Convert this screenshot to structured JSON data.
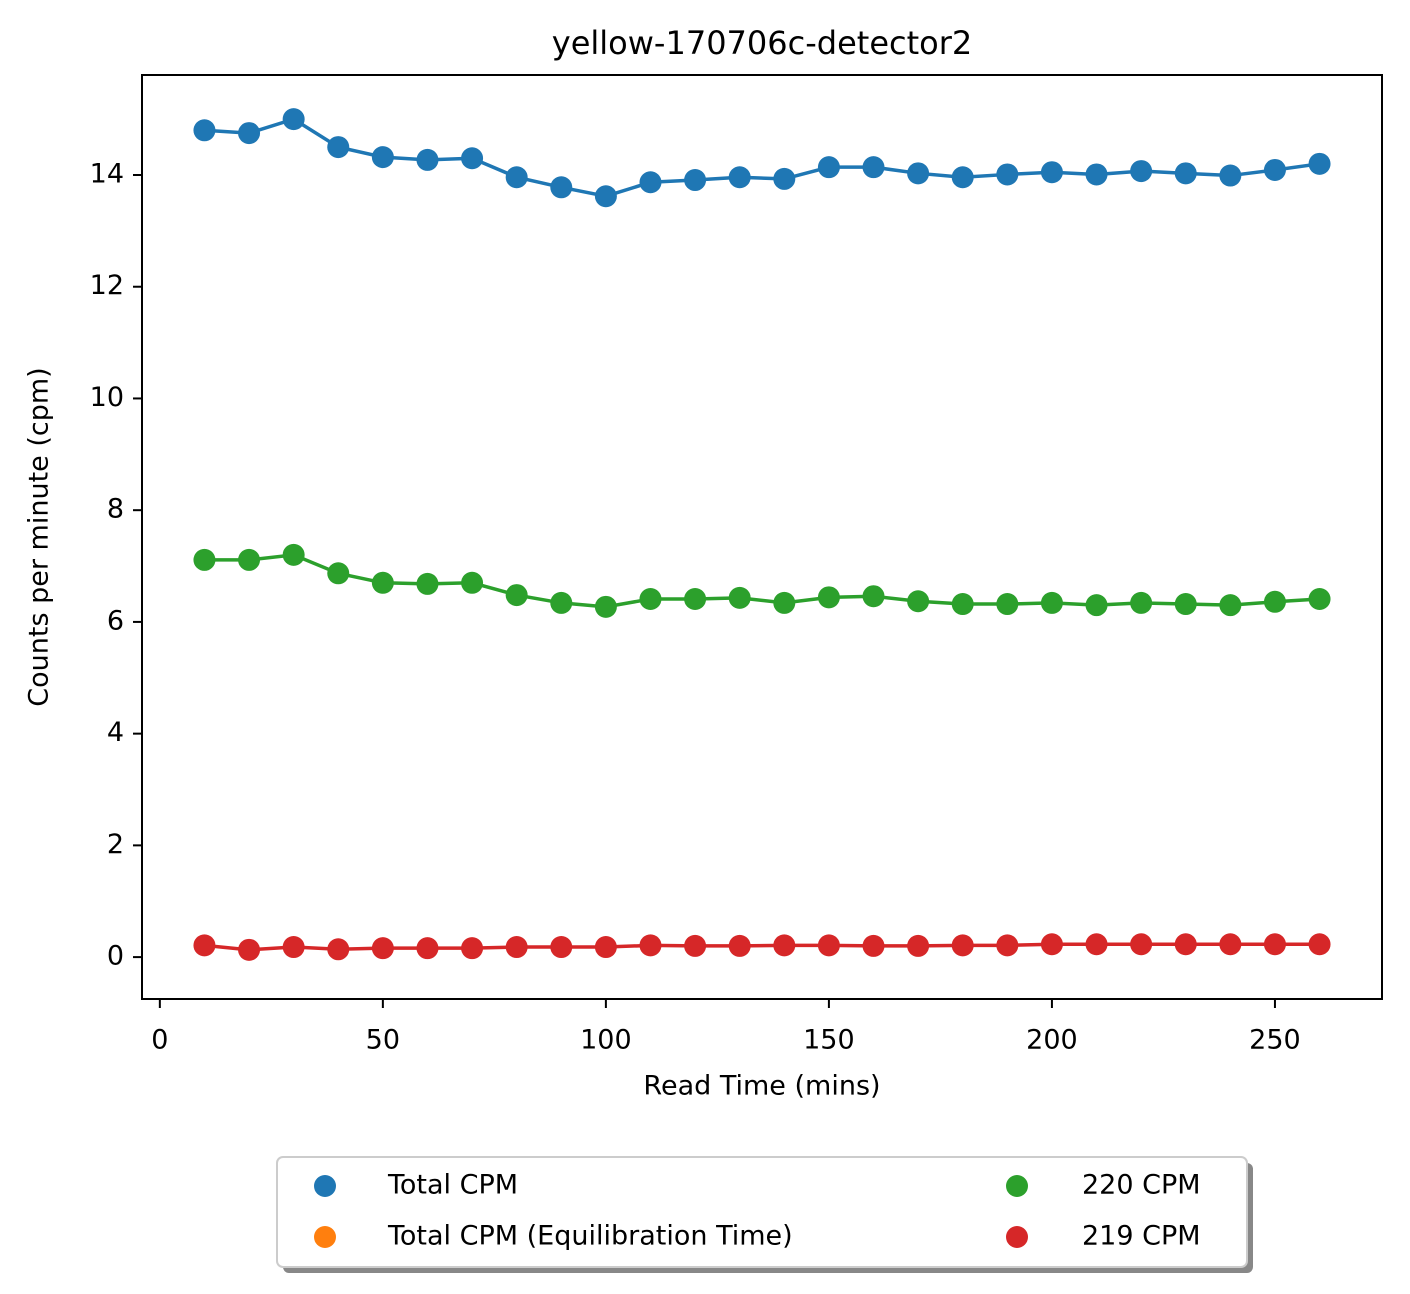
{
  "chart_data": {
    "type": "line",
    "title": "yellow-170706c-detector2",
    "xlabel": "Read Time (mins)",
    "ylabel": "Counts per minute (cpm)",
    "x": [
      10,
      20,
      30,
      40,
      50,
      60,
      70,
      80,
      90,
      100,
      110,
      120,
      130,
      140,
      150,
      160,
      170,
      180,
      190,
      200,
      210,
      220,
      230,
      240,
      250,
      260
    ],
    "series": [
      {
        "name": "Total CPM",
        "color": "#1f77b4",
        "values": [
          14.8,
          14.75,
          15.0,
          14.5,
          14.32,
          14.27,
          14.3,
          13.96,
          13.78,
          13.62,
          13.87,
          13.91,
          13.96,
          13.93,
          14.14,
          14.14,
          14.03,
          13.96,
          14.01,
          14.05,
          14.01,
          14.07,
          14.03,
          13.99,
          14.09,
          14.2
        ]
      },
      {
        "name": "Total CPM (Equilibration Time)",
        "color": "#ff7f0e",
        "values": [
          null,
          null,
          null,
          null,
          null,
          null,
          null,
          null,
          null,
          null,
          null,
          null,
          null,
          null,
          null,
          null,
          null,
          null,
          null,
          null,
          null,
          null,
          null,
          null,
          null,
          null
        ]
      },
      {
        "name": "220 CPM",
        "color": "#2ca02c",
        "values": [
          7.11,
          7.11,
          7.2,
          6.87,
          6.7,
          6.68,
          6.7,
          6.48,
          6.34,
          6.27,
          6.41,
          6.41,
          6.43,
          6.34,
          6.44,
          6.46,
          6.37,
          6.32,
          6.32,
          6.34,
          6.3,
          6.34,
          6.32,
          6.3,
          6.36,
          6.41
        ]
      },
      {
        "name": "219 CPM",
        "color": "#d62728",
        "values": [
          0.21,
          0.13,
          0.18,
          0.14,
          0.16,
          0.16,
          0.16,
          0.18,
          0.18,
          0.18,
          0.21,
          0.2,
          0.2,
          0.21,
          0.21,
          0.2,
          0.2,
          0.21,
          0.21,
          0.23,
          0.23,
          0.23,
          0.23,
          0.23,
          0.23,
          0.23
        ]
      }
    ],
    "xlim": [
      -4,
      274
    ],
    "xticks": [
      0,
      50,
      100,
      150,
      200,
      250
    ],
    "ylim": [
      -0.75,
      15.79
    ],
    "yticks": [
      0,
      2,
      4,
      6,
      8,
      10,
      12,
      14
    ],
    "grid": false,
    "legend": "below"
  }
}
